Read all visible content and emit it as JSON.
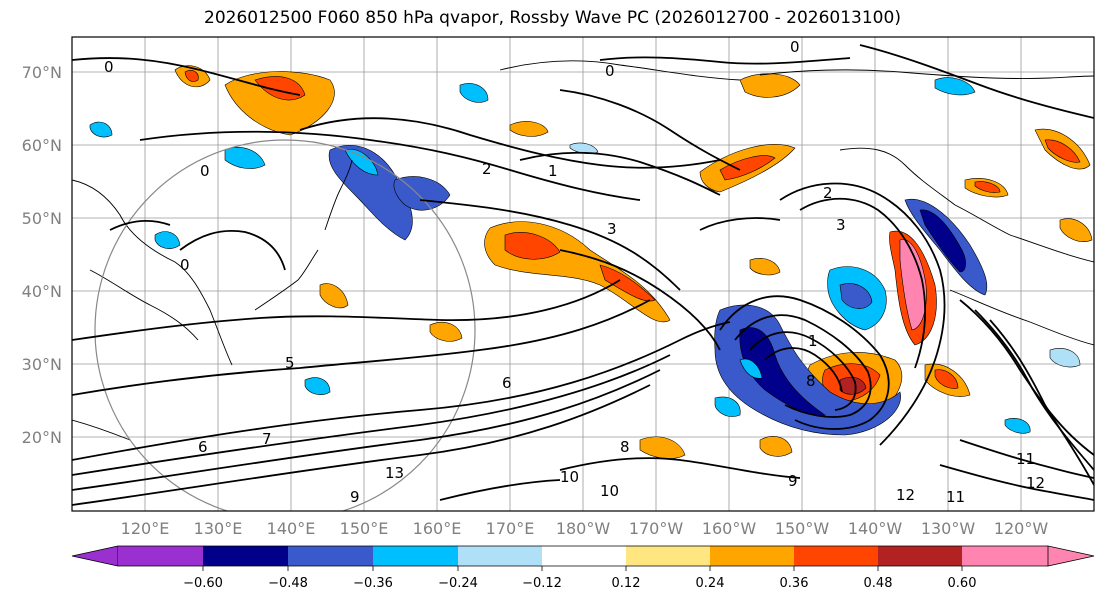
{
  "title": "2026012500 F060 850 hPa qvapor, Rossby Wave PC (2026012700 - 2026013100)",
  "map": {
    "lat_labels": [
      "70°N",
      "60°N",
      "50°N",
      "40°N",
      "30°N",
      "20°N"
    ],
    "lon_labels": [
      "120°E",
      "130°E",
      "140°E",
      "150°E",
      "160°E",
      "170°E",
      "180°W",
      "170°W",
      "160°W",
      "150°W",
      "140°W",
      "130°W",
      "120°W"
    ],
    "contour_labels": [
      "0",
      "0",
      "0",
      "0",
      "1",
      "2",
      "2",
      "3",
      "3",
      "5",
      "6",
      "6",
      "7",
      "8",
      "8",
      "9",
      "9",
      "10",
      "10",
      "11",
      "11",
      "12",
      "12",
      "13",
      "1",
      "0"
    ]
  },
  "colorbar": {
    "ticks": [
      "−0.60",
      "−0.48",
      "−0.36",
      "−0.24",
      "−0.12",
      "0.12",
      "0.24",
      "0.36",
      "0.48",
      "0.60"
    ],
    "colors": [
      "#9b30d0",
      "#00008b",
      "#3a5acc",
      "#00bfff",
      "#b0e0f8",
      "#ffffff",
      "#ffe680",
      "#ffa500",
      "#ff4500",
      "#b22222",
      "#ff85b0"
    ]
  }
}
